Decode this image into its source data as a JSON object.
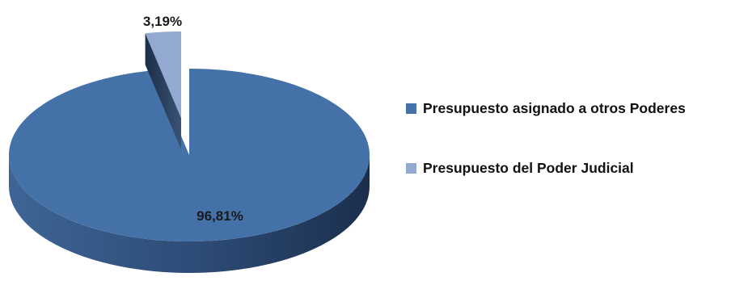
{
  "chart_data": {
    "type": "pie",
    "categories": [
      "Presupuesto asignado a otros Poderes",
      "Presupuesto del Poder Judicial"
    ],
    "values": [
      96.81,
      3.19
    ],
    "data_labels": [
      "96,81%",
      "3,19%"
    ],
    "colors": [
      "#4472a8",
      "#93a9d1"
    ],
    "legend_position": "right",
    "style": "3d-exploded"
  }
}
